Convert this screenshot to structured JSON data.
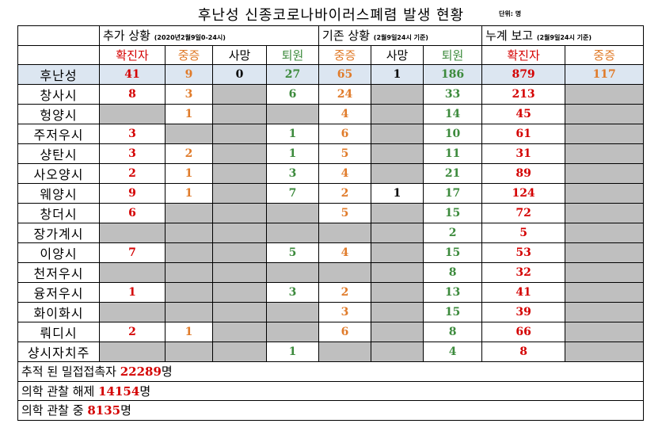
{
  "title": "후난성 신종코로나바이러스폐렴 발생 현황",
  "unit": "단위: 명",
  "groups": [
    {
      "label": "추가 상황",
      "note": "(2020년2월9일0-24시)"
    },
    {
      "label": "기존 상황",
      "note": "(2월9일24시 기준)"
    },
    {
      "label": "누계 보고",
      "note": "(2월9일24시 기준)"
    }
  ],
  "subheaders": [
    "확진자",
    "중증",
    "사망",
    "퇴원",
    "중증",
    "사망",
    "퇴원",
    "확진자",
    "중증"
  ],
  "colors": {
    "red": "#d40000",
    "orange": "#e07b2a",
    "green": "#3c8a3c",
    "gray": "#bfbfbf",
    "total_bg": "#dce6f1"
  },
  "rows": [
    {
      "name": "후난성",
      "cells": [
        "41",
        "9",
        "0",
        "27",
        "65",
        "1",
        "186",
        "879",
        "117"
      ]
    },
    {
      "name": "창사시",
      "cells": [
        "8",
        "3",
        null,
        "6",
        "24",
        null,
        "33",
        "213",
        null
      ]
    },
    {
      "name": "헝양시",
      "cells": [
        null,
        "1",
        null,
        null,
        "4",
        null,
        "14",
        "45",
        null
      ]
    },
    {
      "name": "주저우시",
      "cells": [
        "3",
        null,
        null,
        "1",
        "6",
        null,
        "10",
        "61",
        null
      ]
    },
    {
      "name": "샹탄시",
      "cells": [
        "3",
        "2",
        null,
        "1",
        "5",
        null,
        "11",
        "31",
        null
      ]
    },
    {
      "name": "사오양시",
      "cells": [
        "2",
        "1",
        null,
        "3",
        "4",
        null,
        "21",
        "89",
        null
      ]
    },
    {
      "name": "웨양시",
      "cells": [
        "9",
        "1",
        null,
        "7",
        "2",
        "1",
        "17",
        "124",
        null
      ]
    },
    {
      "name": "창더시",
      "cells": [
        "6",
        null,
        null,
        null,
        "5",
        null,
        "15",
        "72",
        null
      ]
    },
    {
      "name": "장가계시",
      "cells": [
        null,
        null,
        null,
        null,
        null,
        null,
        "2",
        "5",
        null
      ]
    },
    {
      "name": "이양시",
      "cells": [
        "7",
        null,
        null,
        "5",
        "4",
        null,
        "15",
        "53",
        null
      ]
    },
    {
      "name": "천저우시",
      "cells": [
        null,
        null,
        null,
        null,
        null,
        null,
        "8",
        "32",
        null
      ]
    },
    {
      "name": "융저우시",
      "cells": [
        "1",
        null,
        null,
        "3",
        "2",
        null,
        "13",
        "41",
        null
      ]
    },
    {
      "name": "화이화시",
      "cells": [
        null,
        null,
        null,
        null,
        "3",
        null,
        "15",
        "39",
        null
      ]
    },
    {
      "name": "뤄디시",
      "cells": [
        "2",
        "1",
        null,
        null,
        "6",
        null,
        "8",
        "66",
        null
      ]
    },
    {
      "name": "샹시자치주",
      "cells": [
        null,
        null,
        null,
        "1",
        null,
        null,
        "4",
        "8",
        null
      ]
    }
  ],
  "footer": [
    {
      "label": "추적 된 밀접접촉자",
      "value": "22289",
      "suffix": "명"
    },
    {
      "label": "의학 관찰 해제",
      "value": "14154",
      "suffix": "명"
    },
    {
      "label": "의학 관찰 중",
      "value": "8135",
      "suffix": "명"
    }
  ]
}
